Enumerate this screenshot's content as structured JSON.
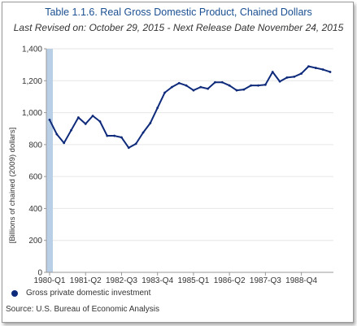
{
  "chart_data": {
    "type": "line",
    "title": "Table 1.1.6. Real Gross Domestic Product, Chained Dollars",
    "subtitle": "Last Revised on: October 29, 2015 - Next Release Date November 24, 2015",
    "ylabel": "[Billions of chained (2009) dollars]",
    "xlabel": "",
    "ylim": [
      0,
      1400
    ],
    "yticks": [
      0,
      200,
      400,
      600,
      800,
      1000,
      1200,
      1400
    ],
    "ytick_labels": [
      "0",
      "200",
      "400",
      "600",
      "800",
      "1,000",
      "1,200",
      "1,400"
    ],
    "xtick_labels": [
      "1980-Q1",
      "1981-Q2",
      "1982-Q3",
      "1983-Q4",
      "1985-Q1",
      "1986-Q2",
      "1987-Q3",
      "1988-Q4"
    ],
    "xtick_indices": [
      0,
      5,
      10,
      15,
      20,
      25,
      30,
      35
    ],
    "grid": true,
    "highlight_band": {
      "start_index": 0,
      "end_index": 0,
      "color": "#b9cfe6"
    },
    "series": [
      {
        "name": "Gross private domestic investment",
        "color": "#0e2a7a",
        "x": [
          "1980-Q1",
          "1980-Q2",
          "1980-Q3",
          "1980-Q4",
          "1981-Q1",
          "1981-Q2",
          "1981-Q3",
          "1981-Q4",
          "1982-Q1",
          "1982-Q2",
          "1982-Q3",
          "1982-Q4",
          "1983-Q1",
          "1983-Q2",
          "1983-Q3",
          "1983-Q4",
          "1984-Q1",
          "1984-Q2",
          "1984-Q3",
          "1984-Q4",
          "1985-Q1",
          "1985-Q2",
          "1985-Q3",
          "1985-Q4",
          "1986-Q1",
          "1986-Q2",
          "1986-Q3",
          "1986-Q4",
          "1987-Q1",
          "1987-Q2",
          "1987-Q3",
          "1987-Q4",
          "1988-Q1",
          "1988-Q2",
          "1988-Q3",
          "1988-Q4",
          "1989-Q1",
          "1989-Q2",
          "1989-Q3",
          "1989-Q4"
        ],
        "values": [
          955,
          865,
          810,
          890,
          970,
          930,
          980,
          945,
          855,
          855,
          845,
          780,
          805,
          875,
          935,
          1030,
          1125,
          1160,
          1185,
          1170,
          1140,
          1160,
          1150,
          1190,
          1190,
          1170,
          1140,
          1145,
          1170,
          1170,
          1175,
          1255,
          1195,
          1220,
          1225,
          1245,
          1290,
          1280,
          1270,
          1255
        ]
      }
    ],
    "legend_position": "bottom-left"
  },
  "legend": {
    "label": "Gross private domestic investment"
  },
  "source": "Source: U.S. Bureau of Economic  Analysis"
}
